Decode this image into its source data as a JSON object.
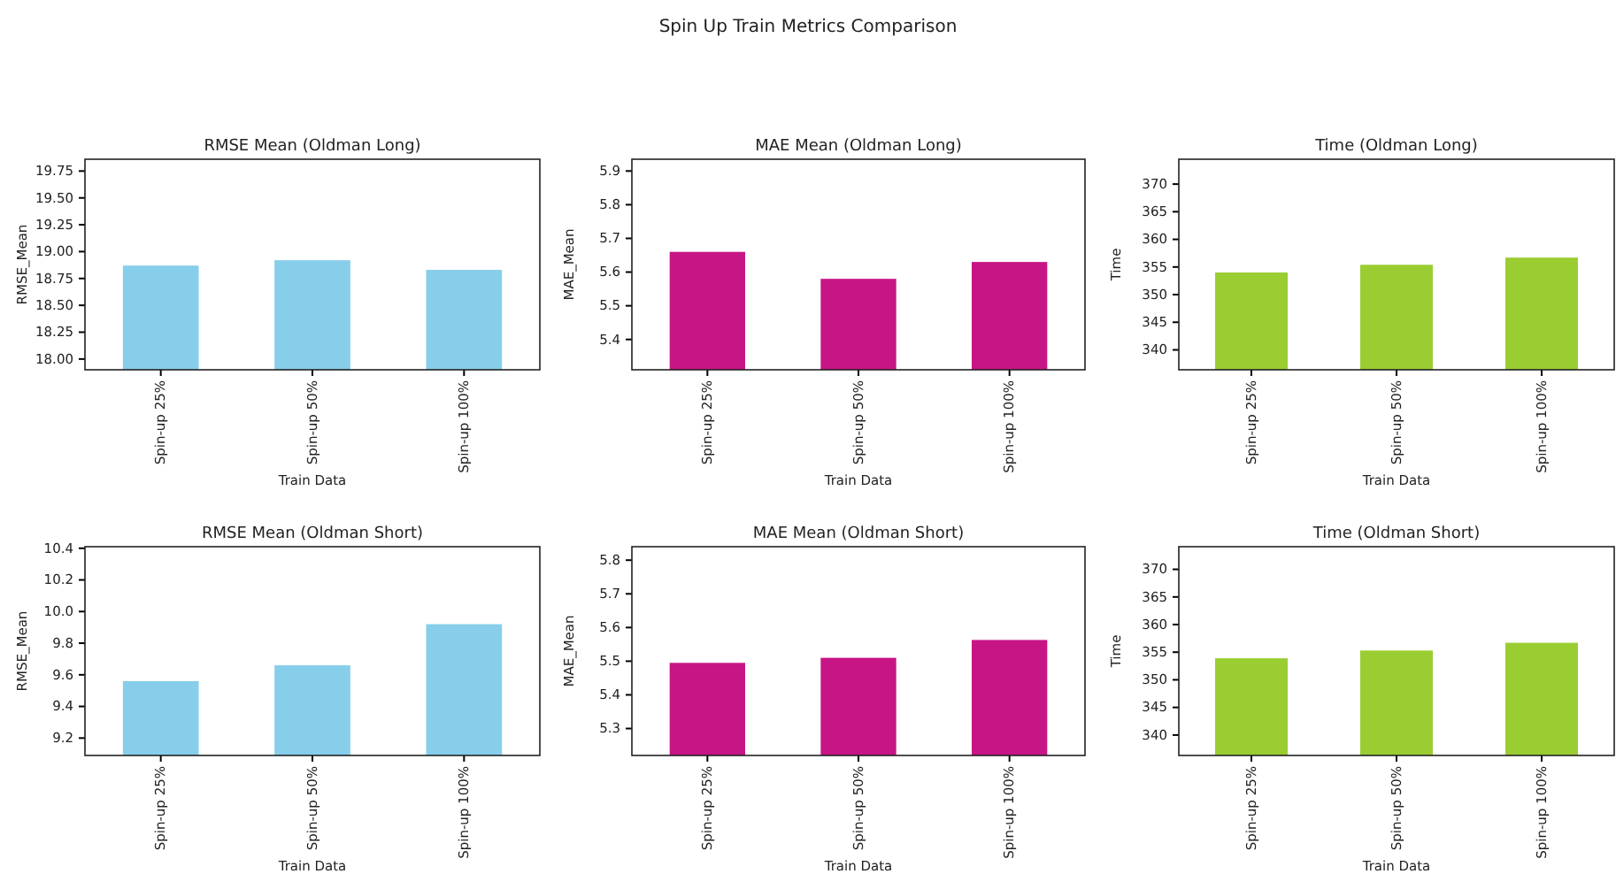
{
  "chart_data": [
    {
      "type": "other",
      "title": "Spin Up Train Metrics Comparison"
    },
    {
      "type": "bar",
      "title": "RMSE Mean (Oldman Long)",
      "xlabel": "Train Data",
      "ylabel": "RMSE_Mean",
      "categories": [
        "Spin-up 25%",
        "Spin-up 50%",
        "Spin-up 100%"
      ],
      "values": [
        18.87,
        18.92,
        18.83
      ],
      "color": "#87ceeb",
      "ylim": [
        17.9,
        19.86
      ],
      "yticks": [
        {
          "value": 18,
          "label": "18.00"
        },
        {
          "value": 18.25,
          "label": "18.25"
        },
        {
          "value": 18.5,
          "label": "18.50"
        },
        {
          "value": 18.75,
          "label": "18.75"
        },
        {
          "value": 19,
          "label": "19.00"
        },
        {
          "value": 19.25,
          "label": "19.25"
        },
        {
          "value": 19.5,
          "label": "19.50"
        },
        19.75
      ]
    },
    {
      "type": "bar",
      "title": "MAE Mean (Oldman Long)",
      "xlabel": "Train Data",
      "ylabel": "MAE_Mean",
      "categories": [
        "Spin-up 25%",
        "Spin-up 50%",
        "Spin-up 100%"
      ],
      "values": [
        5.66,
        5.58,
        5.63
      ],
      "color": "#c71585",
      "ylim": [
        5.31,
        5.935
      ],
      "yticks": [
        5.4,
        5.5,
        5.6,
        5.7,
        5.8,
        5.9
      ]
    },
    {
      "type": "bar",
      "title": "Time (Oldman Long)",
      "xlabel": "Train Data",
      "ylabel": "Time",
      "categories": [
        "Spin-up 25%",
        "Spin-up 50%",
        "Spin-up 100%"
      ],
      "values": [
        354.0,
        355.4,
        356.7
      ],
      "color": "#9acd32",
      "ylim": [
        336.4,
        374.5
      ],
      "yticks": [
        340,
        345,
        350,
        355,
        360,
        365,
        370
      ]
    },
    {
      "type": "bar",
      "title": "RMSE Mean (Oldman Short)",
      "xlabel": "Train Data",
      "ylabel": "RMSE_Mean",
      "categories": [
        "Spin-up 25%",
        "Spin-up 50%",
        "Spin-up 100%"
      ],
      "values": [
        9.56,
        9.66,
        9.92
      ],
      "color": "#87ceeb",
      "ylim": [
        9.09,
        10.41
      ],
      "yticks": [
        9.2,
        9.4,
        9.6,
        9.8,
        {
          "value": 10,
          "label": "10.0"
        },
        10.2,
        10.4
      ]
    },
    {
      "type": "bar",
      "title": "MAE Mean (Oldman Short)",
      "xlabel": "Train Data",
      "ylabel": "MAE_Mean",
      "categories": [
        "Spin-up 25%",
        "Spin-up 50%",
        "Spin-up 100%"
      ],
      "values": [
        5.495,
        5.51,
        5.563
      ],
      "color": "#c71585",
      "ylim": [
        5.22,
        5.84
      ],
      "yticks": [
        5.3,
        5.4,
        5.5,
        5.6,
        5.7,
        5.8
      ]
    },
    {
      "type": "bar",
      "title": "Time (Oldman Short)",
      "xlabel": "Train Data",
      "ylabel": "Time",
      "categories": [
        "Spin-up 25%",
        "Spin-up 50%",
        "Spin-up 100%"
      ],
      "values": [
        353.9,
        355.3,
        356.7
      ],
      "color": "#9acd32",
      "ylim": [
        336.3,
        374.1
      ],
      "yticks": [
        340,
        345,
        350,
        355,
        360,
        365,
        370
      ]
    }
  ]
}
